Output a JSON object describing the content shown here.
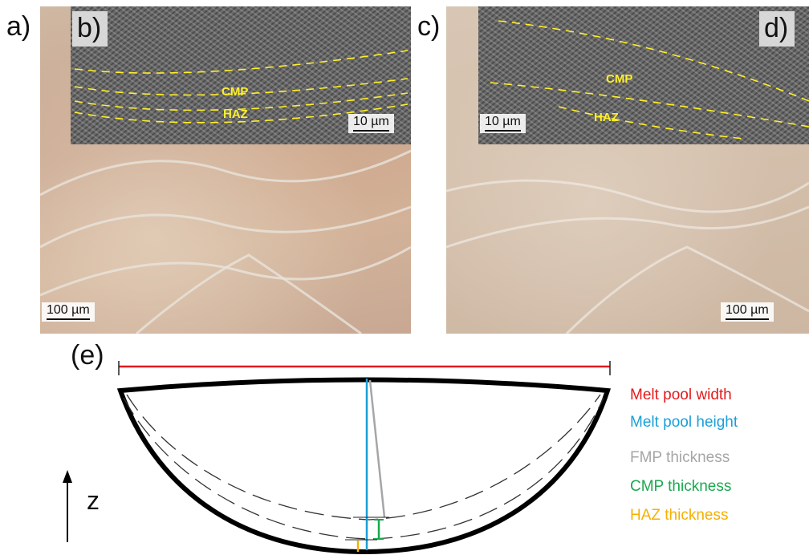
{
  "panels": {
    "a": {
      "letter": "a)",
      "scale": "100 µm"
    },
    "b": {
      "letter": "b)",
      "scale": "10 µm",
      "cmp_label": "CMP",
      "haz_label": "HAZ"
    },
    "c": {
      "letter": "c)",
      "scale": "100 µm"
    },
    "d": {
      "letter": "d)",
      "scale": "10 µm",
      "cmp_label": "CMP",
      "haz_label": "HAZ"
    },
    "e": {
      "letter": "(e)",
      "axis_label": "z"
    }
  },
  "legend": [
    {
      "label": "Melt pool width",
      "color": "#e31a1c"
    },
    {
      "label": "Melt pool height",
      "color": "#1a9fd8"
    },
    {
      "label": "FMP thickness",
      "color": "#a6a6a6"
    },
    {
      "label": "CMP thickness",
      "color": "#1aa84e"
    },
    {
      "label": "HAZ thickness",
      "color": "#f5b000"
    }
  ],
  "colors": {
    "overlay_lines": "#ffef2a",
    "outline": "#000000"
  }
}
